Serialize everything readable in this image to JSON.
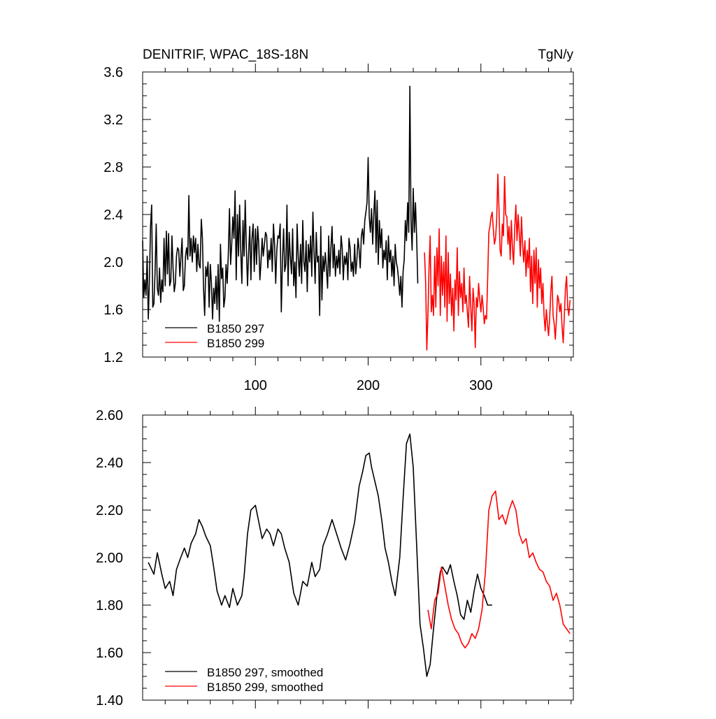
{
  "chart_data": [
    {
      "type": "line",
      "title": "DENITRIF, WPAC_18S-18N",
      "units": "TgN/y",
      "xlim": [
        0,
        382
      ],
      "ylim": [
        1.2,
        3.6
      ],
      "xticks": [
        100,
        200,
        300
      ],
      "xtick_labels": [
        "100",
        "200",
        "300"
      ],
      "yticks": [
        1.2,
        1.6,
        2.0,
        2.4,
        2.8,
        3.2,
        3.6
      ],
      "ytick_labels": [
        "1.2",
        "1.6",
        "2.0",
        "2.4",
        "2.8",
        "3.2",
        "3.6"
      ],
      "legend_position": "bottom-left",
      "series": [
        {
          "name": "B1850 297",
          "color": "#000000",
          "x_start": 0,
          "values": [
            2.18,
            1.7,
            1.85,
            1.72,
            2.05,
            1.52,
            1.85,
            2.3,
            2.48,
            1.62,
            1.65,
            1.9,
            2.32,
            1.78,
            1.72,
            1.95,
            1.66,
            1.85,
            1.75,
            2.2,
            1.8,
            2.26,
            1.9,
            2.24,
            1.8,
            1.84,
            2.22,
            1.95,
            1.75,
            1.82,
            2.05,
            2.12,
            2.1,
            1.88,
            2.05,
            2.2,
            1.76,
            1.8,
            2.05,
            2.12,
            2.02,
            2.56,
            2.05,
            2.2,
            2.0,
            2.22,
            2.08,
            2.2,
            1.92,
            2.15,
            1.98,
            1.95,
            2.36,
            2.2,
            1.78,
            1.55,
            1.96,
            1.88,
            2.0,
            1.62,
            1.98,
            1.82,
            1.52,
            1.78,
            1.65,
            1.88,
            1.6,
            1.98,
            1.5,
            2.15,
            1.86,
            1.95,
            1.62,
            1.7,
            1.98,
            1.82,
            2.08,
            2.45,
            1.98,
            2.15,
            2.38,
            2.2,
            2.6,
            1.85,
            2.4,
            2.05,
            2.48,
            2.1,
            1.82,
            2.35,
            2.05,
            2.52,
            2.1,
            1.8,
            2.08,
            2.3,
            1.85,
            2.2,
            2.32,
            1.92,
            2.28,
            1.98,
            2.3,
            2.15,
            1.85,
            2.0,
            2.2,
            2.05,
            2.15,
            2.25,
            2.22,
            1.95,
            2.1,
            2.02,
            2.2,
            1.92,
            2.32,
            2.15,
            1.82,
            2.1,
            2.22,
            2.2,
            2.32,
            1.58,
            2.02,
            2.28,
            1.92,
            1.98,
            2.48,
            1.8,
            2.25,
            2.05,
            1.9,
            2.28,
            1.8,
            2.0,
            1.7,
            2.32,
            2.05,
            1.88,
            2.15,
            1.82,
            2.35,
            2.0,
            1.92,
            2.18,
            1.75,
            2.15,
            2.0,
            2.22,
            1.88,
            2.42,
            2.1,
            1.82,
            2.25,
            2.0,
            2.05,
            1.55,
            2.3,
            1.68,
            2.05,
            1.92,
            2.08,
            1.95,
            1.78,
            2.22,
            1.88,
            2.12,
            2.3,
            1.95,
            2.15,
            1.88,
            2.05,
            1.95,
            2.1,
            1.9,
            2.22,
            2.12,
            1.85,
            2.05,
            1.98,
            2.08,
            1.85,
            2.2,
            2.12,
            1.92,
            2.0,
            1.88,
            2.15,
            1.9,
            2.02,
            2.2,
            2.1,
            1.95,
            2.22,
            2.28,
            2.15,
            2.35,
            2.42,
            2.5,
            2.88,
            2.38,
            2.25,
            2.45,
            2.15,
            2.4,
            2.6,
            2.08,
            2.52,
            1.98,
            2.35,
            2.12,
            2.28,
            1.95,
            2.1,
            2.02,
            2.18,
            1.85,
            2.22,
            2.0,
            2.1,
            1.88,
            2.05,
            1.8,
            2.15,
            2.0,
            1.95,
            1.85,
            1.72,
            1.88,
            1.62,
            1.92,
            2.02,
            2.35,
            2.18,
            2.5,
            2.25,
            3.48,
            2.35,
            2.1,
            2.62,
            2.25,
            2.5,
            2.2,
            1.82
          ],
          "mark_name": "line-series-b1850-297"
        },
        {
          "name": "B1850 299",
          "color": "#ff0000",
          "x_start": 250,
          "values": [
            2.08,
            1.82,
            1.26,
            1.55,
            1.95,
            2.22,
            1.58,
            1.72,
            1.55,
            2.05,
            1.62,
            2.12,
            1.8,
            2.28,
            1.55,
            2.05,
            1.72,
            2.0,
            1.62,
            2.22,
            1.5,
            2.08,
            1.65,
            1.9,
            1.55,
            1.78,
            1.42,
            1.85,
            1.68,
            2.12,
            1.55,
            1.92,
            1.7,
            1.82,
            1.58,
            1.95,
            1.65,
            1.72,
            1.58,
            1.45,
            1.88,
            1.62,
            1.42,
            1.78,
            1.65,
            1.28,
            1.7,
            1.62,
            1.82,
            1.68,
            1.58,
            1.72,
            1.62,
            1.48,
            1.55,
            1.52,
            1.85,
            2.25,
            2.3,
            2.38,
            2.42,
            2.28,
            2.15,
            2.2,
            2.35,
            2.74,
            2.45,
            2.1,
            2.05,
            2.32,
            2.22,
            2.72,
            2.4,
            2.38,
            2.15,
            2.3,
            2.02,
            2.35,
            2.12,
            1.98,
            2.28,
            2.48,
            2.18,
            2.4,
            2.25,
            2.05,
            2.38,
            2.15,
            2.0,
            2.18,
            1.88,
            2.1,
            1.95,
            2.2,
            1.75,
            2.05,
            1.65,
            2.1,
            1.82,
            2.12,
            1.62,
            2.02,
            1.78,
            1.95,
            1.65,
            1.82,
            1.55,
            1.42,
            1.6,
            1.48,
            1.38,
            1.52,
            1.75,
            1.88,
            1.55,
            1.48,
            1.35,
            1.52,
            1.72,
            1.68,
            1.58,
            1.65,
            1.45,
            1.32,
            1.55,
            1.78,
            1.88,
            1.62,
            1.55,
            1.68
          ],
          "mark_name": "line-series-b1850-299"
        }
      ]
    },
    {
      "type": "line",
      "xlim": [
        0,
        382
      ],
      "ylim": [
        1.4,
        2.6
      ],
      "yticks": [
        1.4,
        1.6,
        1.8,
        2.0,
        2.2,
        2.4,
        2.6
      ],
      "ytick_labels": [
        "1.40",
        "1.60",
        "1.80",
        "2.00",
        "2.20",
        "2.40",
        "2.60"
      ],
      "legend_position": "bottom-left",
      "series": [
        {
          "name": "B1850 297, smoothed",
          "color": "#000000",
          "x": [
            5,
            10,
            13,
            17,
            20,
            24,
            27,
            30,
            33,
            37,
            40,
            43,
            47,
            50,
            53,
            56,
            60,
            63,
            66,
            70,
            73,
            77,
            80,
            84,
            88,
            90,
            93,
            96,
            100,
            103,
            106,
            110,
            113,
            116,
            120,
            123,
            126,
            130,
            134,
            138,
            142,
            146,
            150,
            153,
            157,
            160,
            164,
            168,
            172,
            176,
            180,
            184,
            188,
            192,
            195,
            198,
            201,
            203,
            206,
            209,
            212,
            215,
            218,
            221,
            224,
            228,
            231,
            234,
            237,
            240,
            243,
            246,
            249,
            252,
            255,
            258,
            261,
            264,
            266,
            270,
            273,
            276,
            279,
            282,
            285,
            288,
            291,
            294,
            297,
            300,
            303,
            306,
            310
          ],
          "y": [
            1.98,
            1.93,
            2.02,
            1.93,
            1.87,
            1.9,
            1.84,
            1.95,
            1.99,
            2.04,
            2.0,
            2.06,
            2.1,
            2.16,
            2.13,
            2.09,
            2.05,
            1.96,
            1.86,
            1.8,
            1.84,
            1.79,
            1.87,
            1.8,
            1.84,
            1.92,
            2.1,
            2.2,
            2.22,
            2.15,
            2.08,
            2.12,
            2.1,
            2.05,
            2.12,
            2.1,
            2.04,
            1.98,
            1.85,
            1.8,
            1.9,
            1.88,
            1.98,
            1.92,
            1.95,
            2.05,
            2.1,
            2.16,
            2.1,
            2.04,
            1.99,
            2.06,
            2.15,
            2.3,
            2.36,
            2.43,
            2.44,
            2.38,
            2.32,
            2.26,
            2.16,
            2.04,
            1.98,
            1.9,
            1.84,
            2.0,
            2.25,
            2.48,
            2.52,
            2.38,
            2.05,
            1.72,
            1.62,
            1.5,
            1.55,
            1.7,
            1.84,
            1.94,
            1.96,
            1.93,
            1.97,
            1.9,
            1.84,
            1.76,
            1.74,
            1.82,
            1.77,
            1.86,
            1.93,
            1.87,
            1.84,
            1.8,
            1.8
          ],
          "mark_name": "line-series-b1850-297-smoothed"
        },
        {
          "name": "B1850 299, smoothed",
          "color": "#ff0000",
          "x": [
            253,
            256,
            259,
            262,
            265,
            268,
            271,
            274,
            277,
            280,
            283,
            286,
            289,
            292,
            295,
            298,
            301,
            304,
            307,
            310,
            313,
            316,
            319,
            322,
            325,
            328,
            331,
            334,
            337,
            340,
            343,
            346,
            349,
            352,
            355,
            358,
            361,
            364,
            367,
            370,
            373,
            376,
            379
          ],
          "y": [
            1.78,
            1.7,
            1.82,
            1.85,
            1.96,
            1.88,
            1.8,
            1.74,
            1.7,
            1.68,
            1.64,
            1.62,
            1.64,
            1.68,
            1.66,
            1.7,
            1.78,
            1.94,
            2.2,
            2.26,
            2.28,
            2.16,
            2.18,
            2.14,
            2.2,
            2.24,
            2.2,
            2.1,
            2.06,
            2.08,
            2.0,
            2.02,
            1.98,
            1.95,
            1.94,
            1.9,
            1.88,
            1.82,
            1.85,
            1.8,
            1.72,
            1.7,
            1.68
          ],
          "mark_name": "line-series-b1850-299-smoothed"
        }
      ]
    }
  ]
}
